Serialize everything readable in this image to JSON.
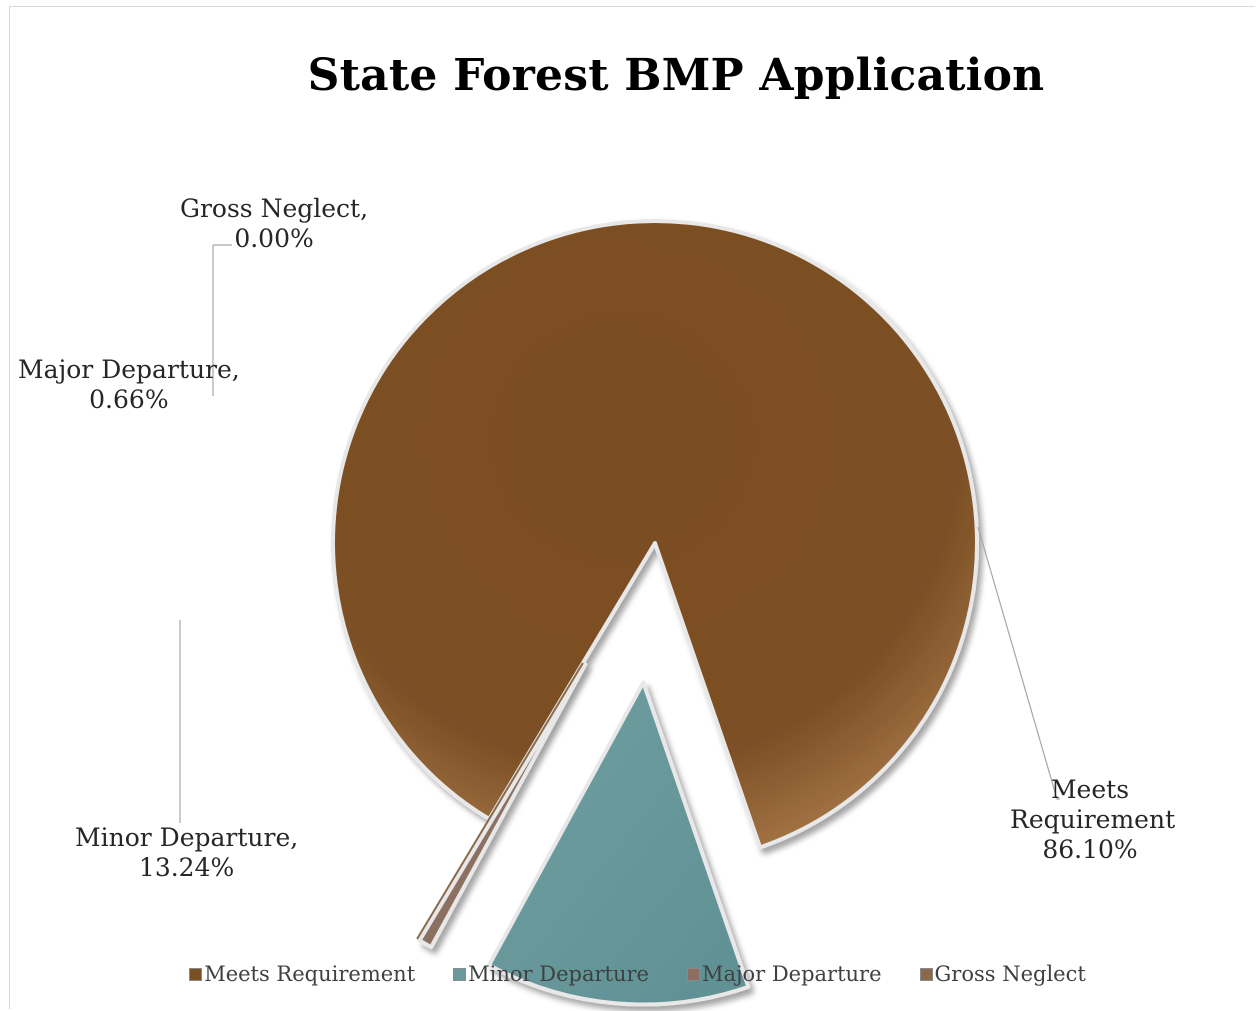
{
  "chart_data": {
    "type": "pie",
    "title": "State Forest BMP Application",
    "slices": [
      {
        "name": "Meets Requirement",
        "value": 86.1,
        "label_name": "Meets Requirement",
        "label_value": "86.10%",
        "color": "#7a4f22",
        "exploded": false
      },
      {
        "name": "Minor Departure",
        "value": 13.24,
        "label_name": "Minor Departure,",
        "label_value": "13.24%",
        "color": "#6a9a9c",
        "exploded": true
      },
      {
        "name": "Major Departure",
        "value": 0.66,
        "label_name": "Major Departure,",
        "label_value": "0.66%",
        "color": "#8c6f62",
        "exploded": true
      },
      {
        "name": "Gross Neglect",
        "value": 0.0,
        "label_name": "Gross Neglect,",
        "label_value": "0.00%",
        "color": "#8a6a4a",
        "exploded": true
      }
    ],
    "legend": [
      "Meets Requirement",
      "Minor Departure",
      "Major Departure",
      "Gross Neglect"
    ],
    "legend_position": "bottom"
  }
}
